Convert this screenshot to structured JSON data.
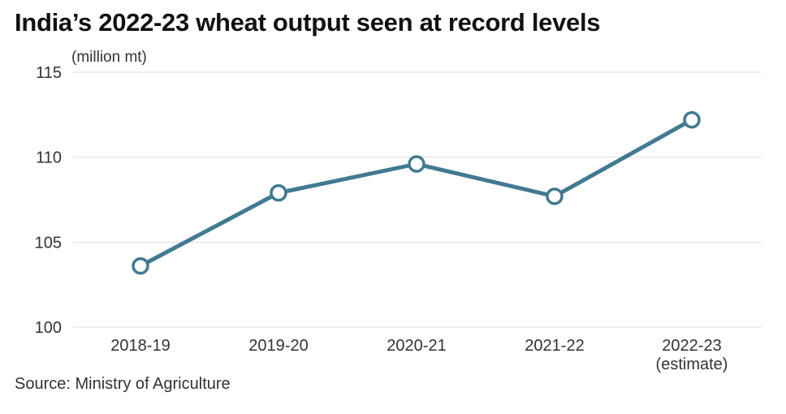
{
  "title": "India’s 2022-23 wheat output seen at record levels",
  "unit_label": "(million mt)",
  "source": "Source: Ministry of Agriculture",
  "colors": {
    "line": "#417a91",
    "grid": "#dddddd",
    "marker_fill": "#ffffff"
  },
  "chart_data": {
    "type": "line",
    "categories": [
      [
        "2018-19"
      ],
      [
        "2019-20"
      ],
      [
        "2020-21"
      ],
      [
        "2021-22"
      ],
      [
        "2022-23",
        "(estimate)"
      ]
    ],
    "values": [
      103.6,
      107.9,
      109.6,
      107.7,
      112.2
    ],
    "ylim": [
      100,
      115
    ],
    "yticks": [
      100,
      105,
      110,
      115
    ],
    "grid": true,
    "title": "India’s 2022-23 wheat output seen at record levels",
    "ylabel": "(million mt)",
    "xlabel": ""
  }
}
